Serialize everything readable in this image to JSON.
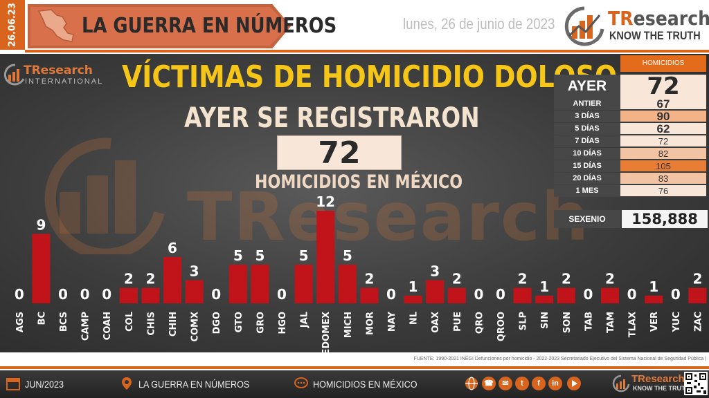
{
  "header": {
    "date_tab": "26.06.23",
    "banner": "LA GUERRA EN NÚMEROS",
    "date_long": "lunes, 26 de junio de 2023",
    "brand_tr": "TR",
    "brand_rest": "esearch",
    "brand_tagline": "KNOW THE TRUTH"
  },
  "panel": {
    "intl_name": "TResearch",
    "intl_sub": "INTERNATIONAL",
    "watermark": "TResearch",
    "title": "VÍCTIMAS DE HOMICIDIO DOLOSO",
    "subtitle": "AYER SE REGISTRARON",
    "big_value": "72",
    "homicides_label": "HOMICIDIOS EN MÉXICO"
  },
  "summary": {
    "header": "HOMICIDIOS",
    "ayer_label": "AYER",
    "ayer_value": "72",
    "rows": [
      {
        "label": "ANTIER",
        "value": "67",
        "color": "#f8e6d8"
      },
      {
        "label": "3 DÍAS",
        "value": "90",
        "color": "#f2b389"
      },
      {
        "label": "5 DÍAS",
        "value": "62",
        "color": "#f8e6d8"
      },
      {
        "label": "7 DÍAS",
        "value": "72",
        "color": "#f8e6d8"
      },
      {
        "label": "10 DÍAS",
        "value": "82",
        "color": "#f3c4a3"
      },
      {
        "label": "15 DÍAS",
        "value": "105",
        "color": "#e87d35"
      },
      {
        "label": "20 DÍAS",
        "value": "83",
        "color": "#f3c4a3"
      },
      {
        "label": "1 MES",
        "value": "76",
        "color": "#f8e6d8"
      }
    ],
    "sexenio_label": "SEXENIO",
    "sexenio_value": "158,888"
  },
  "chart_data": {
    "type": "bar",
    "categories": [
      "AGS",
      "BC",
      "BCS",
      "CAMP",
      "COAH",
      "COL",
      "CHIS",
      "CHIH",
      "COMX",
      "DGO",
      "GTO",
      "GRO",
      "HGO",
      "JAL",
      "EDOMEX",
      "MICH",
      "MOR",
      "NAY",
      "NL",
      "OAX",
      "PUE",
      "QRO",
      "QROO",
      "SLP",
      "SIN",
      "SON",
      "TAB",
      "TAM",
      "TLAX",
      "VER",
      "YUC",
      "ZAC"
    ],
    "values": [
      0,
      9,
      0,
      0,
      0,
      2,
      2,
      6,
      3,
      0,
      5,
      5,
      0,
      5,
      12,
      5,
      2,
      0,
      1,
      3,
      2,
      0,
      0,
      2,
      1,
      2,
      0,
      2,
      0,
      1,
      0,
      2
    ],
    "bar_color": "#c0141a",
    "title": "",
    "xlabel": "",
    "ylabel": "",
    "ylim": [
      0,
      12
    ],
    "grid": false,
    "legend": "none"
  },
  "source": "FUENTE: 1990-2021 INEGI Defunciones por homicidio - 2022-2023 Secretariado Ejecutivo del Sistema Nacional de Seguridad Pública |",
  "footer": {
    "date": "JUN/2023",
    "section": "LA GUERRA EN NÚMEROS",
    "topic": "HOMICIDIOS EN MÉXICO",
    "social": [
      "f",
      "in",
      "t",
      "✉",
      "☎"
    ],
    "brand": "TResearch",
    "tagline": "KNOW THE TRUTH"
  }
}
